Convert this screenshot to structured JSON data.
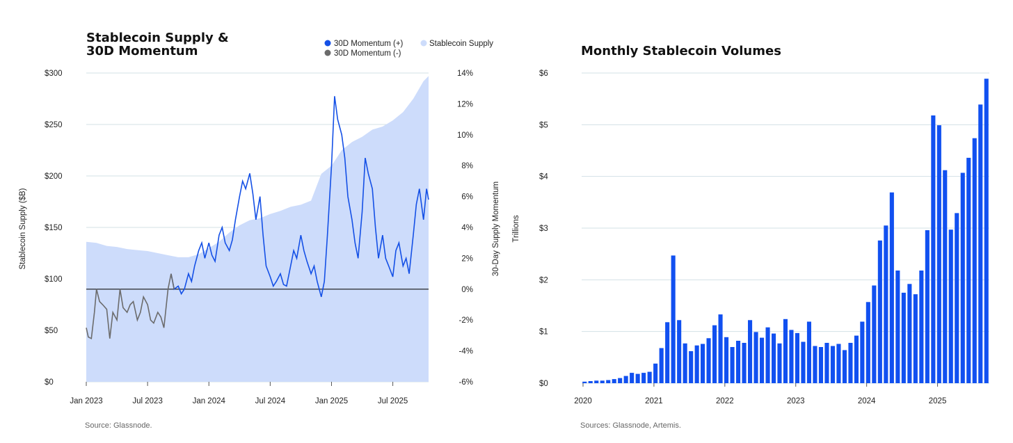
{
  "colors": {
    "momentum_pos": "#1450e6",
    "momentum_neg": "#6b6b6b",
    "supply_fill": "#cddcfb",
    "bar": "#1150f0",
    "grid": "#d3e0e6",
    "zero_line": "#111111"
  },
  "chart_data": [
    {
      "type": "line",
      "title_lines": [
        "Stablecoin Supply &",
        "30D Momentum"
      ],
      "legend": [
        {
          "label": "30D Momentum (+)",
          "color_key": "momentum_pos"
        },
        {
          "label": "Stablecoin Supply",
          "color_key": "supply_fill"
        },
        {
          "label": "30D Momentum (-)",
          "color_key": "momentum_neg"
        }
      ],
      "ylabel_left": "Stablecoin Supply ($B)",
      "ylabel_right": "30-Day Supply Momentum",
      "y_left_ticks": [
        "$0",
        "$50",
        "$100",
        "$150",
        "$200",
        "$250",
        "$300"
      ],
      "y_left_range": [
        0,
        300
      ],
      "y_right_ticks": [
        "-6%",
        "-4%",
        "-2%",
        "0%",
        "2%",
        "4%",
        "6%",
        "8%",
        "10%",
        "12%",
        "14%"
      ],
      "y_right_range": [
        -6,
        14
      ],
      "x_ticks": [
        "Jan 2023",
        "Jul 2023",
        "Jan 2024",
        "Jul 2024",
        "Jan 2025",
        "Jul 2025"
      ],
      "x_range_months": [
        0,
        33.5
      ],
      "supply_series": {
        "name": "Stablecoin Supply",
        "x": [
          0,
          1,
          2,
          3,
          4,
          5,
          6,
          7,
          8,
          9,
          10,
          11,
          12,
          13,
          14,
          15,
          16,
          17,
          18,
          19,
          20,
          21,
          22,
          23,
          24,
          25,
          26,
          27,
          28,
          29,
          30,
          31,
          32,
          33,
          33.5
        ],
        "values": [
          136,
          135,
          132,
          131,
          129,
          128,
          127,
          125,
          123,
          121,
          121,
          124,
          130,
          136,
          145,
          152,
          157,
          159,
          163,
          166,
          170,
          172,
          176,
          202,
          210,
          225,
          233,
          238,
          245,
          248,
          254,
          262,
          275,
          292,
          297
        ]
      },
      "momentum_series": {
        "name": "30D Momentum",
        "x": [
          0,
          0.2,
          0.5,
          0.8,
          1.0,
          1.3,
          1.6,
          2.0,
          2.3,
          2.6,
          3.0,
          3.3,
          3.6,
          4.0,
          4.3,
          4.6,
          5.0,
          5.3,
          5.6,
          6.0,
          6.3,
          6.6,
          7.0,
          7.3,
          7.6,
          8.0,
          8.3,
          8.6,
          9.0,
          9.3,
          9.6,
          10.0,
          10.3,
          10.6,
          11.0,
          11.3,
          11.6,
          12.0,
          12.3,
          12.6,
          13.0,
          13.3,
          13.6,
          14.0,
          14.3,
          14.6,
          15.0,
          15.3,
          15.6,
          16.0,
          16.3,
          16.6,
          17.0,
          17.3,
          17.6,
          18.0,
          18.3,
          18.6,
          19.0,
          19.3,
          19.6,
          20.0,
          20.3,
          20.6,
          21.0,
          21.3,
          21.6,
          22.0,
          22.3,
          22.6,
          23.0,
          23.3,
          23.6,
          24.0,
          24.3,
          24.6,
          25.0,
          25.3,
          25.6,
          26.0,
          26.3,
          26.6,
          27.0,
          27.3,
          27.6,
          28.0,
          28.3,
          28.6,
          29.0,
          29.3,
          29.6,
          30.0,
          30.3,
          30.6,
          31.0,
          31.3,
          31.6,
          32.0,
          32.3,
          32.6,
          33.0,
          33.3,
          33.5
        ],
        "values": [
          -2.5,
          -3.1,
          -3.2,
          -1.5,
          0.0,
          -0.8,
          -1.0,
          -1.3,
          -3.2,
          -1.5,
          -2.0,
          0.0,
          -1.2,
          -1.5,
          -1.0,
          -0.8,
          -2.0,
          -1.5,
          -0.5,
          -1.0,
          -2.0,
          -2.2,
          -1.5,
          -1.8,
          -2.5,
          0.0,
          1.0,
          0.0,
          0.2,
          -0.3,
          0.0,
          1.0,
          0.5,
          1.5,
          2.5,
          3.0,
          2.0,
          3.0,
          2.2,
          1.8,
          3.5,
          4.0,
          3.0,
          2.5,
          3.2,
          4.5,
          6.0,
          7.0,
          6.5,
          7.5,
          6.2,
          4.5,
          6.0,
          3.5,
          1.5,
          0.8,
          0.2,
          0.5,
          1.0,
          0.3,
          0.2,
          1.5,
          2.5,
          2.0,
          3.5,
          2.5,
          1.8,
          1.0,
          1.5,
          0.5,
          -0.5,
          0.5,
          3.5,
          8.0,
          12.5,
          11.0,
          10.0,
          8.5,
          6.0,
          4.5,
          3.0,
          2.0,
          5.0,
          8.5,
          7.5,
          6.5,
          4.0,
          2.0,
          3.5,
          2.0,
          1.5,
          0.8,
          2.5,
          3.0,
          1.5,
          2.0,
          1.0,
          3.5,
          5.5,
          6.5,
          4.5,
          6.5,
          5.8
        ]
      },
      "source": "Source: Glassnode."
    },
    {
      "type": "bar",
      "title": "Monthly Stablecoin Volumes",
      "ylabel": "Trillions",
      "y_ticks": [
        "$0",
        "$1",
        "$2",
        "$3",
        "$4",
        "$5",
        "$6"
      ],
      "y_range": [
        0,
        6
      ],
      "x_ticks": [
        "2020",
        "2021",
        "2022",
        "2023",
        "2024",
        "2025"
      ],
      "start_year": 2020,
      "values": [
        0.03,
        0.04,
        0.05,
        0.05,
        0.06,
        0.08,
        0.1,
        0.14,
        0.2,
        0.18,
        0.2,
        0.22,
        0.38,
        0.68,
        1.18,
        2.47,
        1.22,
        0.77,
        0.62,
        0.73,
        0.76,
        0.87,
        1.12,
        1.33,
        0.89,
        0.7,
        0.82,
        0.78,
        1.22,
        0.99,
        0.88,
        1.08,
        0.96,
        0.77,
        1.24,
        1.03,
        0.97,
        0.8,
        1.19,
        0.72,
        0.7,
        0.78,
        0.72,
        0.76,
        0.64,
        0.78,
        0.92,
        1.19,
        1.57,
        1.89,
        2.76,
        3.05,
        3.69,
        2.18,
        1.75,
        1.92,
        1.72,
        2.18,
        2.96,
        5.18,
        4.99,
        4.12,
        2.97,
        3.29,
        4.07,
        4.36,
        4.74,
        5.39,
        5.89
      ],
      "source": "Sources: Glassnode, Artemis."
    }
  ]
}
